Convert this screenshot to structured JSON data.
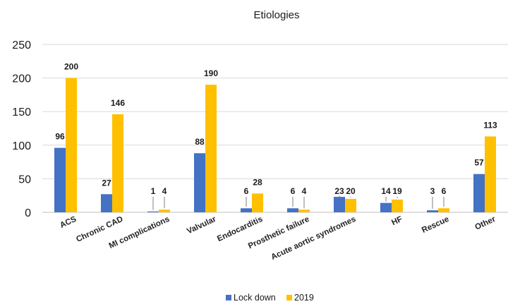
{
  "chart_data": {
    "type": "bar",
    "title": "Etiologies",
    "categories": [
      "ACS",
      "Chronic CAD",
      "MI complications",
      "Valvular",
      "Endocarditis",
      "Prosthetic failure",
      "Acute aortic syndromes",
      "HF",
      "Rescue",
      "Other"
    ],
    "series": [
      {
        "name": "Lock down",
        "color": "#4472C4",
        "values": [
          96,
          27,
          1,
          88,
          6,
          6,
          23,
          14,
          3,
          57
        ]
      },
      {
        "name": "2019",
        "color": "#FFC000",
        "values": [
          200,
          146,
          4,
          190,
          28,
          4,
          20,
          19,
          6,
          113
        ]
      }
    ],
    "ylim": [
      0,
      250
    ],
    "yticks": [
      0,
      50,
      100,
      150,
      200,
      250
    ],
    "xlabel": "",
    "ylabel": "",
    "grid": true,
    "legend": "bottom"
  }
}
